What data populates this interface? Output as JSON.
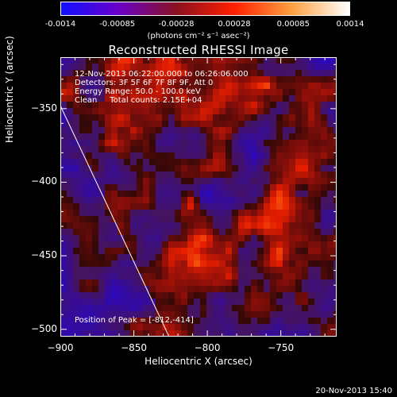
{
  "colorbar": {
    "tick_labels": [
      "-0.0014",
      "-0.00085",
      "-0.00028",
      "0.00028",
      "0.00085",
      "0.0014"
    ],
    "units": "(photons cm⁻² s⁻¹ asec⁻²)",
    "min": -0.0014,
    "max": 0.0014,
    "colors": [
      "#1010ff",
      "#6a00c8",
      "#8a1020",
      "#ff2000",
      "#ffa040",
      "#ffffff"
    ]
  },
  "chart_data": {
    "type": "heatmap",
    "title": "Reconstructed RHESSI Image",
    "xlabel": "Heliocentric X (arcsec)",
    "ylabel": "Heliocentric Y (arcsec)",
    "xlim": [
      -900,
      -712
    ],
    "ylim": [
      -505,
      -315
    ],
    "xticks": [
      -900,
      -850,
      -800,
      -750
    ],
    "yticks": [
      -350,
      -400,
      -450,
      -500
    ],
    "xtick_labels": [
      "−900",
      "−850",
      "−800",
      "−750"
    ],
    "ytick_labels": [
      "−350",
      "−400",
      "−450",
      "−500"
    ],
    "peak": {
      "x": -812,
      "y": -414
    },
    "limb_line": [
      {
        "x": -900,
        "y": -348
      },
      {
        "x": -826,
        "y": -505
      }
    ],
    "annotations": [
      "12-Nov-2013 06:22:00.000 to 06:26:06.000",
      "Detectors: 3F 5F 6F 7F 8F 9F, Att 0",
      "Energy Range: 50.0 - 100.0 keV",
      "Clean     Total counts: 2.15E+04"
    ],
    "peak_label": "Position of Peak = [-812,-414]"
  },
  "timestamp": "20-Nov-2013 15:40"
}
